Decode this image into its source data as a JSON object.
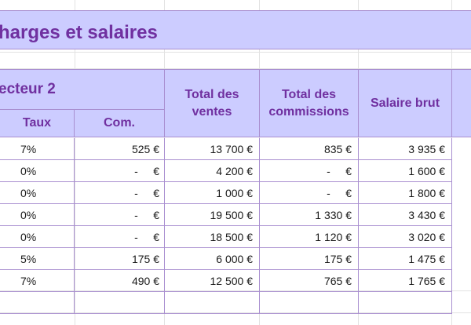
{
  "title": "harges et salaires",
  "headers": {
    "secteur": "ecteur 2",
    "taux": "Taux",
    "com": "Com.",
    "total_ventes_1": "Total des",
    "total_ventes_2": "ventes",
    "total_commissions_1": "Total des",
    "total_commissions_2": "commissions",
    "salaire_brut": "Salaire brut"
  },
  "rows": [
    {
      "taux": "7%",
      "com": "525 €",
      "ventes": "13 700 €",
      "commissions": "835 €",
      "salaire": "3 935 €"
    },
    {
      "taux": "0%",
      "com": "-     €",
      "ventes": "4 200 €",
      "commissions": "-     €",
      "salaire": "1 600 €"
    },
    {
      "taux": "0%",
      "com": "-     €",
      "ventes": "1 000 €",
      "commissions": "-     €",
      "salaire": "1 800 €"
    },
    {
      "taux": "0%",
      "com": "-     €",
      "ventes": "19 500 €",
      "commissions": "1 330 €",
      "salaire": "3 430 €"
    },
    {
      "taux": "0%",
      "com": "-     €",
      "ventes": "18 500 €",
      "commissions": "1 120 €",
      "salaire": "3 020 €"
    },
    {
      "taux": "5%",
      "com": "175 €",
      "ventes": "6 000 €",
      "commissions": "175 €",
      "salaire": "1 475 €"
    },
    {
      "taux": "7%",
      "com": "490 €",
      "ventes": "12 500 €",
      "commissions": "765 €",
      "salaire": "1 765 €"
    }
  ],
  "colors": {
    "header_bg": "#ccccff",
    "header_text": "#7030a0",
    "border": "#a98fd0"
  }
}
